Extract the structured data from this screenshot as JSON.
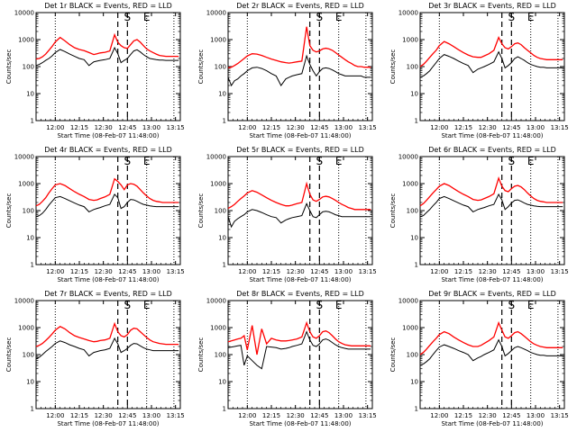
{
  "chart_data": {
    "type": "line",
    "layout": "3x3 grid of log-scale time series",
    "legend": "in title: BLACK = Events, RED = LLD",
    "colors": {
      "events": "#000000",
      "lld": "#ff0000",
      "axes": "#000000"
    },
    "ylabel": "Counts/sec",
    "xlabel": "Start Time (08-Feb-07 11:48:00)",
    "xlim": [
      0,
      90
    ],
    "xlim_units": "minutes after 11:48:00",
    "ylim": [
      1,
      10000
    ],
    "yscale": "log",
    "xticks": [
      {
        "value": 12,
        "label": "12:00"
      },
      {
        "value": 27,
        "label": "12:15"
      },
      {
        "value": 42,
        "label": "12:30"
      },
      {
        "value": 57,
        "label": "12:45"
      },
      {
        "value": 72,
        "label": "13:00"
      },
      {
        "value": 87,
        "label": "13:15"
      }
    ],
    "yticks": [
      {
        "value": 1,
        "label": "1"
      },
      {
        "value": 10,
        "label": "10"
      },
      {
        "value": 100,
        "label": "100"
      },
      {
        "value": 1000,
        "label": "1000"
      },
      {
        "value": 10000,
        "label": "10000"
      }
    ],
    "markers": {
      "start": "S",
      "end": "E"
    },
    "time_axis_minutes": [
      0,
      2,
      4,
      6,
      8,
      10,
      12,
      15,
      18,
      21,
      24,
      27,
      30,
      33,
      36,
      38,
      40,
      43,
      46,
      49,
      51,
      53,
      55,
      57,
      59,
      61,
      63,
      65,
      67,
      69,
      71,
      73,
      75,
      77,
      79,
      81,
      83,
      85,
      87,
      89
    ],
    "panels": [
      {
        "title": "Det 1r BLACK = Events, RED = LLD",
        "dotted_lines": [
          12,
          69,
          86
        ],
        "dashed_lines": [
          51,
          57
        ],
        "s_marker": 57,
        "e_marker": 69,
        "lld": [
          190,
          200,
          230,
          290,
          400,
          560,
          820,
          1200,
          900,
          650,
          500,
          430,
          390,
          330,
          280,
          300,
          320,
          340,
          380,
          1500,
          800,
          600,
          500,
          470,
          650,
          900,
          1000,
          800,
          600,
          450,
          380,
          330,
          290,
          260,
          250,
          240,
          240,
          240,
          240,
          240
        ],
        "events": [
          110,
          120,
          140,
          170,
          200,
          250,
          330,
          430,
          360,
          290,
          240,
          200,
          180,
          110,
          150,
          160,
          170,
          180,
          200,
          500,
          300,
          140,
          170,
          200,
          280,
          380,
          420,
          350,
          280,
          230,
          200,
          190,
          180,
          175,
          175,
          170,
          170,
          170,
          170,
          170
        ]
      },
      {
        "title": "Det 2r BLACK = Events, RED = LLD",
        "dotted_lines": [
          12,
          69,
          86
        ],
        "dashed_lines": [
          51,
          57
        ],
        "s_marker": 57,
        "e_marker": 69,
        "lld": [
          90,
          95,
          110,
          130,
          160,
          200,
          250,
          300,
          290,
          260,
          220,
          190,
          170,
          150,
          140,
          135,
          140,
          150,
          160,
          3000,
          600,
          400,
          350,
          380,
          450,
          480,
          450,
          400,
          330,
          270,
          220,
          180,
          150,
          130,
          110,
          100,
          100,
          95,
          95,
          95
        ],
        "events": [
          40,
          20,
          30,
          35,
          45,
          55,
          70,
          90,
          95,
          85,
          70,
          55,
          45,
          20,
          35,
          40,
          45,
          50,
          55,
          250,
          120,
          70,
          45,
          65,
          85,
          90,
          85,
          75,
          65,
          55,
          50,
          45,
          45,
          45,
          45,
          45,
          45,
          40,
          40,
          40
        ]
      },
      {
        "title": "Det 3r BLACK = Events, RED = LLD",
        "dotted_lines": [
          12,
          69,
          86
        ],
        "dashed_lines": [
          51,
          57
        ],
        "s_marker": 57,
        "e_marker": 69,
        "lld": [
          100,
          120,
          160,
          220,
          300,
          400,
          600,
          850,
          700,
          550,
          420,
          330,
          270,
          230,
          220,
          220,
          250,
          300,
          400,
          1200,
          700,
          500,
          450,
          550,
          700,
          750,
          650,
          500,
          400,
          320,
          260,
          220,
          200,
          190,
          180,
          180,
          180,
          180,
          180,
          180
        ],
        "events": [
          40,
          45,
          55,
          70,
          100,
          140,
          200,
          280,
          240,
          200,
          160,
          130,
          110,
          60,
          80,
          90,
          100,
          120,
          150,
          350,
          200,
          90,
          110,
          140,
          200,
          230,
          200,
          170,
          140,
          120,
          110,
          100,
          95,
          95,
          90,
          90,
          90,
          90,
          90,
          90
        ]
      },
      {
        "title": "Det 4r BLACK = Events, RED = LLD",
        "dotted_lines": [
          12,
          69,
          86
        ],
        "dashed_lines": [
          51,
          57
        ],
        "s_marker": 57,
        "e_marker": 69,
        "lld": [
          150,
          170,
          220,
          300,
          450,
          650,
          900,
          1000,
          850,
          650,
          500,
          400,
          330,
          260,
          240,
          250,
          280,
          320,
          400,
          1500,
          1200,
          900,
          600,
          900,
          1000,
          950,
          800,
          600,
          450,
          350,
          280,
          240,
          220,
          210,
          200,
          200,
          200,
          200,
          200,
          200
        ],
        "events": [
          60,
          65,
          80,
          110,
          160,
          220,
          300,
          330,
          280,
          230,
          190,
          160,
          140,
          90,
          110,
          120,
          130,
          150,
          170,
          400,
          300,
          120,
          140,
          200,
          260,
          250,
          220,
          190,
          170,
          160,
          150,
          145,
          140,
          140,
          140,
          140,
          140,
          140,
          140,
          140
        ]
      },
      {
        "title": "Det 5r BLACK = Events, RED = LLD",
        "dotted_lines": [
          12,
          69,
          86
        ],
        "dashed_lines": [
          51,
          57
        ],
        "s_marker": 57,
        "e_marker": 69,
        "lld": [
          120,
          140,
          170,
          220,
          280,
          350,
          450,
          550,
          480,
          380,
          300,
          240,
          200,
          170,
          150,
          150,
          160,
          180,
          200,
          1000,
          400,
          250,
          220,
          260,
          320,
          340,
          320,
          280,
          240,
          200,
          170,
          150,
          130,
          120,
          110,
          110,
          110,
          110,
          110,
          110
        ],
        "events": [
          60,
          25,
          40,
          50,
          60,
          70,
          90,
          110,
          100,
          85,
          70,
          60,
          55,
          35,
          45,
          50,
          55,
          60,
          65,
          180,
          100,
          60,
          55,
          70,
          90,
          95,
          90,
          80,
          70,
          65,
          60,
          60,
          60,
          60,
          60,
          60,
          60,
          60,
          60,
          60
        ]
      },
      {
        "title": "Det 6r BLACK = Events, RED = LLD",
        "dotted_lines": [
          12,
          69,
          86
        ],
        "dashed_lines": [
          51,
          57
        ],
        "s_marker": 57,
        "e_marker": 69,
        "lld": [
          150,
          180,
          240,
          330,
          450,
          600,
          800,
          1000,
          850,
          650,
          500,
          400,
          330,
          260,
          240,
          250,
          280,
          330,
          420,
          1600,
          800,
          550,
          500,
          650,
          800,
          850,
          750,
          600,
          450,
          350,
          280,
          240,
          220,
          210,
          200,
          200,
          200,
          200,
          200,
          200
        ],
        "events": [
          60,
          65,
          85,
          110,
          150,
          200,
          280,
          330,
          280,
          230,
          190,
          160,
          140,
          90,
          110,
          120,
          130,
          150,
          170,
          400,
          250,
          110,
          140,
          190,
          240,
          250,
          220,
          190,
          170,
          160,
          150,
          145,
          140,
          140,
          140,
          140,
          140,
          140,
          140,
          140
        ]
      },
      {
        "title": "Det 7r BLACK = Events, RED = LLD",
        "dotted_lines": [
          12,
          69,
          86
        ],
        "dashed_lines": [
          51,
          57
        ],
        "s_marker": 57,
        "e_marker": 69,
        "lld": [
          200,
          220,
          260,
          330,
          430,
          580,
          800,
          1100,
          900,
          650,
          500,
          430,
          380,
          330,
          300,
          310,
          330,
          350,
          400,
          1400,
          700,
          500,
          450,
          550,
          800,
          950,
          900,
          700,
          550,
          430,
          350,
          300,
          280,
          260,
          250,
          240,
          240,
          240,
          240,
          240
        ],
        "events": [
          70,
          80,
          100,
          130,
          160,
          200,
          260,
          320,
          280,
          230,
          200,
          170,
          150,
          90,
          120,
          130,
          140,
          150,
          170,
          400,
          250,
          120,
          140,
          170,
          220,
          260,
          250,
          210,
          180,
          160,
          150,
          140,
          140,
          140,
          140,
          140,
          140,
          140,
          140,
          140
        ]
      },
      {
        "title": "Det 8r BLACK = Events, RED = LLD",
        "dotted_lines": [
          12,
          69,
          86
        ],
        "dashed_lines": [
          51,
          57
        ],
        "s_marker": 57,
        "e_marker": 69,
        "lld": [
          300,
          320,
          350,
          380,
          400,
          500,
          150,
          1200,
          100,
          900,
          250,
          400,
          350,
          320,
          320,
          330,
          350,
          380,
          450,
          1500,
          700,
          450,
          400,
          500,
          700,
          750,
          650,
          500,
          380,
          300,
          260,
          230,
          220,
          210,
          210,
          210,
          210,
          210,
          210,
          210
        ],
        "events": [
          180,
          190,
          200,
          210,
          220,
          40,
          90,
          60,
          40,
          30,
          200,
          190,
          180,
          160,
          170,
          180,
          200,
          220,
          250,
          700,
          350,
          220,
          200,
          250,
          350,
          380,
          340,
          280,
          230,
          200,
          180,
          170,
          160,
          160,
          160,
          160,
          160,
          160,
          160,
          160
        ]
      },
      {
        "title": "Det 9r BLACK = Events, RED = LLD",
        "dotted_lines": [
          12,
          69,
          86
        ],
        "dashed_lines": [
          51,
          57
        ],
        "s_marker": 57,
        "e_marker": 69,
        "lld": [
          100,
          120,
          160,
          220,
          300,
          400,
          550,
          700,
          600,
          450,
          350,
          280,
          230,
          200,
          200,
          220,
          260,
          330,
          450,
          1500,
          800,
          450,
          400,
          500,
          650,
          700,
          600,
          480,
          380,
          300,
          250,
          220,
          200,
          190,
          180,
          180,
          180,
          180,
          180,
          180
        ],
        "events": [
          40,
          45,
          55,
          70,
          100,
          140,
          190,
          230,
          200,
          170,
          140,
          120,
          100,
          60,
          75,
          85,
          100,
          120,
          150,
          350,
          200,
          90,
          110,
          140,
          180,
          200,
          180,
          160,
          140,
          120,
          110,
          100,
          95,
          95,
          90,
          90,
          90,
          90,
          90,
          90
        ]
      }
    ]
  }
}
